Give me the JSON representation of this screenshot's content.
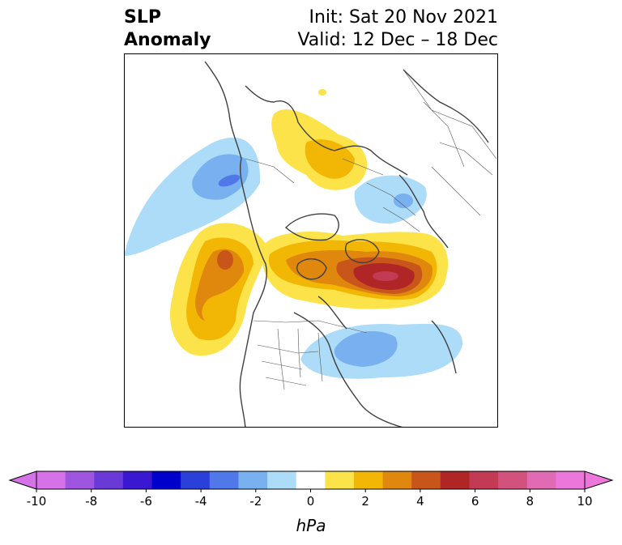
{
  "title": {
    "left_line1": "SLP",
    "left_line2": "Anomaly",
    "right_line1": "Init: Sat 20 Nov 2021",
    "right_line2": "Valid: 12 Dec – 18 Dec"
  },
  "colorbar": {
    "unit": "hPa",
    "levels": [
      -10,
      -9,
      -8,
      -7,
      -6,
      -5,
      -4,
      -3,
      -2,
      -1,
      1,
      2,
      3,
      4,
      5,
      6,
      7,
      8,
      9,
      10
    ],
    "ticks": [
      "-10",
      "-8",
      "-6",
      "-4",
      "-2",
      "0",
      "2",
      "4",
      "6",
      "8",
      "10"
    ],
    "colors": [
      "#d672e8",
      "#9e55e0",
      "#6a3ad6",
      "#3a17d1",
      "#0000cc",
      "#2a40d8",
      "#5078e8",
      "#78b0f0",
      "#acdcf8",
      "#ffffff",
      "#fde34a",
      "#f2b705",
      "#e0870e",
      "#c8561a",
      "#b02525",
      "#c33a55",
      "#d1527d",
      "#e06ab4",
      "#ea77d9"
    ],
    "under_color": "#d672e8",
    "over_color": "#ea77d9"
  },
  "map": {
    "projection": "north polar stereographic",
    "anomalies": [
      {
        "region": "North Pacific / Alaska",
        "sign": "negative",
        "min_hPa": -4
      },
      {
        "region": "Western Canada",
        "sign": "positive",
        "max_hPa": 5
      },
      {
        "region": "Greenland / Arctic Archipelago",
        "sign": "positive",
        "max_hPa": 8
      },
      {
        "region": "Northern Siberia",
        "sign": "positive",
        "max_hPa": 3
      },
      {
        "region": "Scandinavia / Europe",
        "sign": "negative",
        "min_hPa": -2
      },
      {
        "region": "Eastern US / Atlantic",
        "sign": "negative",
        "min_hPa": -3
      }
    ]
  }
}
